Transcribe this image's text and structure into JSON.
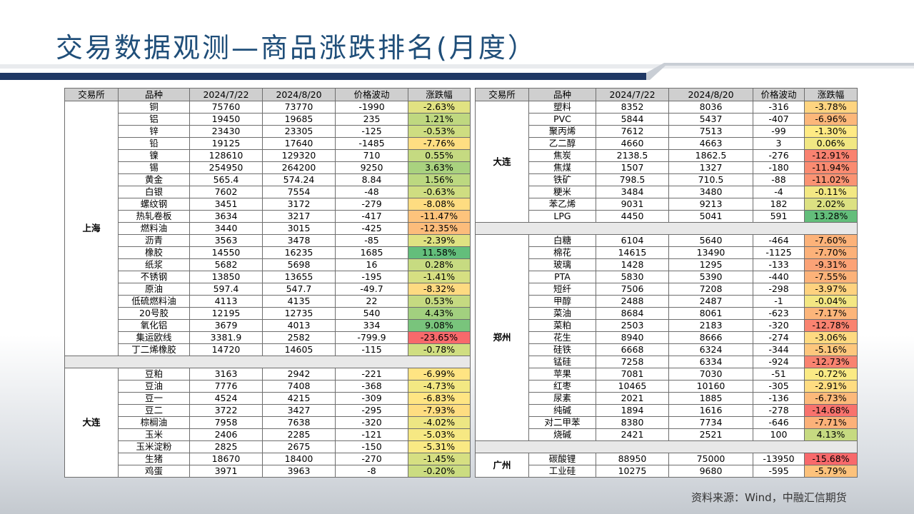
{
  "title": "交易数据观测—商品涨跌排名(月度）",
  "source": "资料来源：Wind，中融汇信期货",
  "colors": {
    "title": "#1f4e79",
    "header_bg": "#cfcfcf",
    "pct_min": "#f8696b",
    "pct_mid": "#ffeb84",
    "pct_max": "#63be7b"
  },
  "headers": [
    "交易所",
    "品种",
    "2024/7/22",
    "2024/8/20",
    "价格波动",
    "涨跌幅"
  ],
  "left": {
    "groups": [
      {
        "exchange": "上海",
        "rows": [
          {
            "name": "铜",
            "p1": "75760",
            "p2": "73770",
            "chg": "-1990",
            "pct": "-2.63%"
          },
          {
            "name": "铝",
            "p1": "19450",
            "p2": "19685",
            "chg": "235",
            "pct": "1.21%"
          },
          {
            "name": "锌",
            "p1": "23430",
            "p2": "23305",
            "chg": "-125",
            "pct": "-0.53%"
          },
          {
            "name": "铅",
            "p1": "19125",
            "p2": "17640",
            "chg": "-1485",
            "pct": "-7.76%"
          },
          {
            "name": "镍",
            "p1": "128610",
            "p2": "129320",
            "chg": "710",
            "pct": "0.55%"
          },
          {
            "name": "锡",
            "p1": "254950",
            "p2": "264200",
            "chg": "9250",
            "pct": "3.63%"
          },
          {
            "name": "黄金",
            "p1": "565.4",
            "p2": "574.24",
            "chg": "8.84",
            "pct": "1.56%"
          },
          {
            "name": "白银",
            "p1": "7602",
            "p2": "7554",
            "chg": "-48",
            "pct": "-0.63%"
          },
          {
            "name": "螺纹钢",
            "p1": "3451",
            "p2": "3172",
            "chg": "-279",
            "pct": "-8.08%"
          },
          {
            "name": "热轧卷板",
            "p1": "3634",
            "p2": "3217",
            "chg": "-417",
            "pct": "-11.47%"
          },
          {
            "name": "燃料油",
            "p1": "3440",
            "p2": "3015",
            "chg": "-425",
            "pct": "-12.35%"
          },
          {
            "name": "沥青",
            "p1": "3563",
            "p2": "3478",
            "chg": "-85",
            "pct": "-2.39%"
          },
          {
            "name": "橡胶",
            "p1": "14550",
            "p2": "16235",
            "chg": "1685",
            "pct": "11.58%"
          },
          {
            "name": "纸浆",
            "p1": "5682",
            "p2": "5698",
            "chg": "16",
            "pct": "0.28%"
          },
          {
            "name": "不锈钢",
            "p1": "13850",
            "p2": "13655",
            "chg": "-195",
            "pct": "-1.41%"
          },
          {
            "name": "原油",
            "p1": "597.4",
            "p2": "547.7",
            "chg": "-49.7",
            "pct": "-8.32%"
          },
          {
            "name": "低硫燃料油",
            "p1": "4113",
            "p2": "4135",
            "chg": "22",
            "pct": "0.53%"
          },
          {
            "name": "20号胶",
            "p1": "12195",
            "p2": "12735",
            "chg": "540",
            "pct": "4.43%"
          },
          {
            "name": "氧化铝",
            "p1": "3679",
            "p2": "4013",
            "chg": "334",
            "pct": "9.08%"
          },
          {
            "name": "集运欧线",
            "p1": "3381.9",
            "p2": "2582",
            "chg": "-799.9",
            "pct": "-23.65%"
          },
          {
            "name": "丁二烯橡胶",
            "p1": "14720",
            "p2": "14605",
            "chg": "-115",
            "pct": "-0.78%"
          }
        ]
      },
      {
        "exchange": "大连",
        "rows": [
          {
            "name": "豆粕",
            "p1": "3163",
            "p2": "2942",
            "chg": "-221",
            "pct": "-6.99%"
          },
          {
            "name": "豆油",
            "p1": "7776",
            "p2": "7408",
            "chg": "-368",
            "pct": "-4.73%"
          },
          {
            "name": "豆一",
            "p1": "4524",
            "p2": "4215",
            "chg": "-309",
            "pct": "-6.83%"
          },
          {
            "name": "豆二",
            "p1": "3722",
            "p2": "3427",
            "chg": "-295",
            "pct": "-7.93%"
          },
          {
            "name": "棕榈油",
            "p1": "7958",
            "p2": "7638",
            "chg": "-320",
            "pct": "-4.02%"
          },
          {
            "name": "玉米",
            "p1": "2406",
            "p2": "2285",
            "chg": "-121",
            "pct": "-5.03%"
          },
          {
            "name": "玉米淀粉",
            "p1": "2825",
            "p2": "2675",
            "chg": "-150",
            "pct": "-5.31%"
          },
          {
            "name": "生猪",
            "p1": "18670",
            "p2": "18400",
            "chg": "-270",
            "pct": "-1.45%"
          },
          {
            "name": "鸡蛋",
            "p1": "3971",
            "p2": "3963",
            "chg": "-8",
            "pct": "-0.20%"
          }
        ]
      }
    ]
  },
  "right": {
    "groups": [
      {
        "exchange": "大连",
        "rows": [
          {
            "name": "塑料",
            "p1": "8352",
            "p2": "8036",
            "chg": "-316",
            "pct": "-3.78%"
          },
          {
            "name": "PVC",
            "p1": "5844",
            "p2": "5437",
            "chg": "-407",
            "pct": "-6.96%"
          },
          {
            "name": "聚丙烯",
            "p1": "7612",
            "p2": "7513",
            "chg": "-99",
            "pct": "-1.30%"
          },
          {
            "name": "乙二醇",
            "p1": "4660",
            "p2": "4663",
            "chg": "3",
            "pct": "0.06%"
          },
          {
            "name": "焦炭",
            "p1": "2138.5",
            "p2": "1862.5",
            "chg": "-276",
            "pct": "-12.91%"
          },
          {
            "name": "焦煤",
            "p1": "1507",
            "p2": "1327",
            "chg": "-180",
            "pct": "-11.94%"
          },
          {
            "name": "铁矿",
            "p1": "798.5",
            "p2": "710.5",
            "chg": "-88",
            "pct": "-11.02%"
          },
          {
            "name": "粳米",
            "p1": "3484",
            "p2": "3480",
            "chg": "-4",
            "pct": "-0.11%"
          },
          {
            "name": "苯乙烯",
            "p1": "9031",
            "p2": "9213",
            "chg": "182",
            "pct": "2.02%"
          },
          {
            "name": "LPG",
            "p1": "4450",
            "p2": "5041",
            "chg": "591",
            "pct": "13.28%"
          }
        ]
      },
      {
        "exchange": "郑州",
        "rows": [
          {
            "name": "白糖",
            "p1": "6104",
            "p2": "5640",
            "chg": "-464",
            "pct": "-7.60%"
          },
          {
            "name": "棉花",
            "p1": "14615",
            "p2": "13490",
            "chg": "-1125",
            "pct": "-7.70%"
          },
          {
            "name": "玻璃",
            "p1": "1428",
            "p2": "1295",
            "chg": "-133",
            "pct": "-9.31%"
          },
          {
            "name": "PTA",
            "p1": "5830",
            "p2": "5390",
            "chg": "-440",
            "pct": "-7.55%"
          },
          {
            "name": "短纤",
            "p1": "7506",
            "p2": "7208",
            "chg": "-298",
            "pct": "-3.97%"
          },
          {
            "name": "甲醇",
            "p1": "2488",
            "p2": "2487",
            "chg": "-1",
            "pct": "-0.04%"
          },
          {
            "name": "菜油",
            "p1": "8684",
            "p2": "8061",
            "chg": "-623",
            "pct": "-7.17%"
          },
          {
            "name": "菜粕",
            "p1": "2503",
            "p2": "2183",
            "chg": "-320",
            "pct": "-12.78%"
          },
          {
            "name": "花生",
            "p1": "8940",
            "p2": "8666",
            "chg": "-274",
            "pct": "-3.06%"
          },
          {
            "name": "硅铁",
            "p1": "6668",
            "p2": "6324",
            "chg": "-344",
            "pct": "-5.16%"
          },
          {
            "name": "锰硅",
            "p1": "7258",
            "p2": "6334",
            "chg": "-924",
            "pct": "-12.73%"
          },
          {
            "name": "苹果",
            "p1": "7081",
            "p2": "7030",
            "chg": "-51",
            "pct": "-0.72%"
          },
          {
            "name": "红枣",
            "p1": "10465",
            "p2": "10160",
            "chg": "-305",
            "pct": "-2.91%"
          },
          {
            "name": "尿素",
            "p1": "2021",
            "p2": "1885",
            "chg": "-136",
            "pct": "-6.73%"
          },
          {
            "name": "纯碱",
            "p1": "1894",
            "p2": "1616",
            "chg": "-278",
            "pct": "-14.68%"
          },
          {
            "name": "对二甲苯",
            "p1": "8380",
            "p2": "7734",
            "chg": "-646",
            "pct": "-7.71%"
          },
          {
            "name": "烧碱",
            "p1": "2421",
            "p2": "2521",
            "chg": "100",
            "pct": "4.13%"
          }
        ]
      },
      {
        "exchange": "广州",
        "rows": [
          {
            "name": "碳酸锂",
            "p1": "88950",
            "p2": "75000",
            "chg": "-13950",
            "pct": "-15.68%"
          },
          {
            "name": "工业硅",
            "p1": "10275",
            "p2": "9680",
            "chg": "-595",
            "pct": "-5.79%"
          }
        ]
      }
    ]
  }
}
